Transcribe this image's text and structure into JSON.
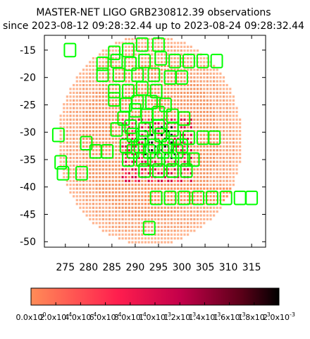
{
  "chart_data": {
    "type": "heatmap",
    "title": "MASTER-NET LIGO GRB230812.39 observations",
    "subtitle": "since 2023-08-12 09:28:32.44 up to 2023-08-24 09:28:32.44",
    "xlabel": "",
    "ylabel": "",
    "xlim": [
      270.5,
      318.0
    ],
    "ylim": [
      -51.0,
      -12.3
    ],
    "x_ticks": [
      275,
      280,
      285,
      290,
      295,
      300,
      305,
      310,
      315
    ],
    "y_ticks": [
      -15,
      -20,
      -25,
      -30,
      -35,
      -40,
      -45,
      -50
    ],
    "x_tick_labels": [
      "275",
      "280",
      "285",
      "290",
      "295",
      "300",
      "305",
      "310",
      "315"
    ],
    "y_tick_labels": [
      "-15",
      "-20",
      "-25",
      "-30",
      "-35",
      "-40",
      "-45",
      "-50"
    ],
    "grid": false,
    "probability_map": {
      "center": [
        293.2,
        -31.5
      ],
      "radius_x": 19.8,
      "radius_y": 19.2,
      "bright_band": [
        -43.5,
        -40.0
      ]
    },
    "colorbar": {
      "min": 0.0,
      "max": 0.002,
      "colors": [
        "#ff8c57",
        "#ff1e4e",
        "#c4004a",
        "#5a0018",
        "#000000"
      ],
      "tick_values": [
        0.0,
        0.0002,
        0.0004,
        0.0006,
        0.0008,
        0.001,
        0.0012,
        0.0014,
        0.0016,
        0.0018,
        0.002
      ],
      "tick_labels": [
        "0.0x10",
        "2.0x10",
        "4.0x10",
        "6.0x10",
        "8.0x10",
        "1.0x10",
        "1.2x10",
        "1.4x10",
        "1.6x10",
        "1.8x10",
        "2.0x10"
      ],
      "tick_exponents": [
        "0",
        "-4",
        "-4",
        "-4",
        "-4",
        "-3",
        "-3",
        "-3",
        "-3",
        "-3",
        "-3"
      ]
    },
    "field_color": "#00ff00",
    "observation_fields": [
      [
        276.0,
        -15.0,
        2.4,
        2.4
      ],
      [
        285.5,
        -15.5,
        2.4,
        2.4
      ],
      [
        288.5,
        -15.0,
        2.4,
        2.4
      ],
      [
        291.5,
        -14.0,
        2.4,
        2.4
      ],
      [
        295.0,
        -14.0,
        2.4,
        2.4
      ],
      [
        283.0,
        -17.5,
        2.4,
        2.4
      ],
      [
        286.0,
        -17.0,
        2.4,
        2.4
      ],
      [
        289.0,
        -17.5,
        2.4,
        2.4
      ],
      [
        292.0,
        -17.0,
        2.4,
        2.4
      ],
      [
        295.5,
        -16.5,
        2.4,
        2.4
      ],
      [
        298.5,
        -17.0,
        2.4,
        2.4
      ],
      [
        301.5,
        -17.0,
        2.4,
        2.4
      ],
      [
        304.5,
        -17.0,
        2.4,
        2.4
      ],
      [
        307.5,
        -17.0,
        2.4,
        2.4
      ],
      [
        283.0,
        -19.5,
        2.4,
        2.4
      ],
      [
        286.5,
        -19.5,
        2.4,
        2.4
      ],
      [
        290.5,
        -19.5,
        2.4,
        2.4
      ],
      [
        294.0,
        -19.5,
        2.4,
        2.4
      ],
      [
        297.5,
        -20.0,
        2.4,
        2.4
      ],
      [
        300.0,
        -20.0,
        2.4,
        2.4
      ],
      [
        285.5,
        -22.5,
        2.4,
        2.4
      ],
      [
        288.5,
        -22.5,
        2.4,
        2.4
      ],
      [
        291.5,
        -22.0,
        2.4,
        2.4
      ],
      [
        294.5,
        -22.5,
        2.4,
        2.4
      ],
      [
        285.5,
        -24.0,
        2.4,
        2.4
      ],
      [
        288.0,
        -25.0,
        2.4,
        2.4
      ],
      [
        290.5,
        -24.5,
        2.4,
        2.4
      ],
      [
        293.5,
        -24.5,
        2.4,
        2.4
      ],
      [
        296.5,
        -25.0,
        2.4,
        2.4
      ],
      [
        287.5,
        -27.5,
        2.4,
        2.4
      ],
      [
        290.0,
        -26.0,
        2.4,
        2.4
      ],
      [
        292.5,
        -27.0,
        2.4,
        2.4
      ],
      [
        295.0,
        -26.5,
        2.4,
        2.4
      ],
      [
        298.0,
        -27.0,
        2.4,
        2.4
      ],
      [
        300.5,
        -27.5,
        2.4,
        2.4
      ],
      [
        286.0,
        -29.5,
        2.4,
        2.4
      ],
      [
        289.0,
        -29.0,
        2.4,
        2.4
      ],
      [
        292.0,
        -29.5,
        2.4,
        2.4
      ],
      [
        295.0,
        -29.0,
        2.4,
        2.4
      ],
      [
        298.0,
        -29.5,
        2.4,
        2.4
      ],
      [
        289.5,
        -30.5,
        2.4,
        2.4
      ],
      [
        291.5,
        -31.0,
        2.4,
        2.4
      ],
      [
        295.5,
        -30.5,
        2.4,
        2.4
      ],
      [
        298.5,
        -31.0,
        2.4,
        2.4
      ],
      [
        301.5,
        -31.0,
        2.4,
        2.4
      ],
      [
        304.5,
        -31.0,
        2.4,
        2.4
      ],
      [
        307.0,
        -31.0,
        2.4,
        2.4
      ],
      [
        288.0,
        -32.5,
        2.4,
        2.4
      ],
      [
        291.0,
        -32.5,
        2.4,
        2.4
      ],
      [
        294.0,
        -32.5,
        2.4,
        2.4
      ],
      [
        297.0,
        -32.5,
        2.4,
        2.4
      ],
      [
        300.0,
        -32.5,
        2.4,
        2.4
      ],
      [
        289.5,
        -33.5,
        2.4,
        2.4
      ],
      [
        293.0,
        -33.5,
        2.4,
        2.4
      ],
      [
        296.0,
        -33.5,
        2.4,
        2.4
      ],
      [
        299.0,
        -33.5,
        2.4,
        2.4
      ],
      [
        288.5,
        -35.0,
        2.4,
        2.4
      ],
      [
        291.5,
        -35.0,
        2.4,
        2.4
      ],
      [
        294.5,
        -35.0,
        2.4,
        2.4
      ],
      [
        297.5,
        -35.0,
        2.4,
        2.4
      ],
      [
        300.5,
        -35.0,
        2.4,
        2.4
      ],
      [
        302.5,
        -35.0,
        2.4,
        2.4
      ],
      [
        292.0,
        -37.0,
        2.4,
        2.4
      ],
      [
        295.0,
        -37.0,
        2.4,
        2.4
      ],
      [
        298.0,
        -37.0,
        2.4,
        2.4
      ],
      [
        301.0,
        -37.0,
        2.4,
        2.4
      ],
      [
        273.5,
        -30.5,
        2.4,
        2.4
      ],
      [
        279.5,
        -32.0,
        2.4,
        2.4
      ],
      [
        281.5,
        -33.5,
        2.4,
        2.4
      ],
      [
        284.0,
        -33.5,
        2.4,
        2.4
      ],
      [
        274.0,
        -35.5,
        2.4,
        2.4
      ],
      [
        274.5,
        -37.5,
        2.4,
        2.4
      ],
      [
        278.5,
        -37.5,
        2.4,
        2.4
      ],
      [
        294.5,
        -42.0,
        2.4,
        2.4
      ],
      [
        297.5,
        -42.0,
        2.4,
        2.4
      ],
      [
        300.5,
        -42.0,
        2.4,
        2.4
      ],
      [
        303.5,
        -42.0,
        2.4,
        2.4
      ],
      [
        306.5,
        -42.0,
        2.4,
        2.4
      ],
      [
        309.5,
        -42.0,
        2.4,
        2.4
      ],
      [
        312.5,
        -42.0,
        2.4,
        2.4
      ],
      [
        315.0,
        -42.0,
        2.4,
        2.4
      ],
      [
        293.0,
        -47.5,
        2.4,
        2.4
      ]
    ]
  }
}
